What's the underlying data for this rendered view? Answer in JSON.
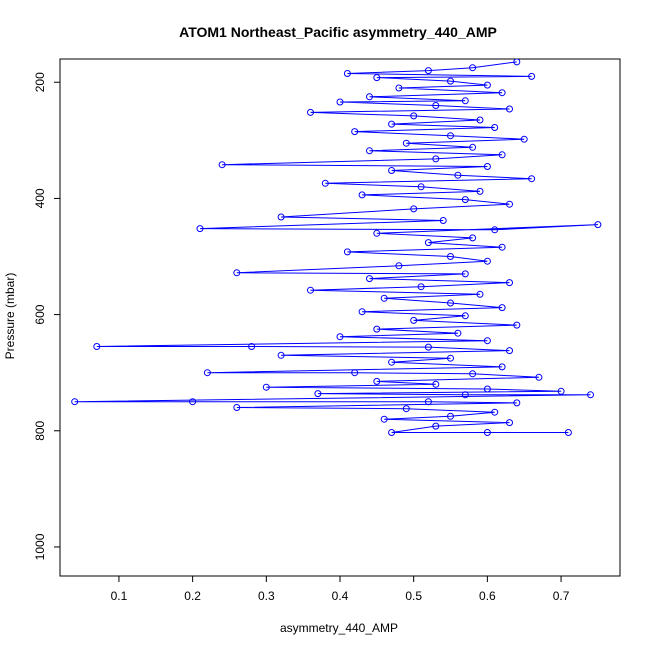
{
  "chart_data": {
    "type": "scatter",
    "title": "ATOM1 Northeast_Pacific asymmetry_440_AMP",
    "xlabel": "asymmetry_440_AMP",
    "ylabel": "Pressure (mbar)",
    "xlim": [
      0.02,
      0.78
    ],
    "ylim": [
      1050,
      160
    ],
    "y_reversed": true,
    "x_ticks": [
      "0.1",
      "0.2",
      "0.3",
      "0.4",
      "0.5",
      "0.6",
      "0.7"
    ],
    "y_ticks": [
      "200",
      "400",
      "600",
      "800",
      "1000"
    ],
    "grid": false,
    "legend": "none",
    "connected_points": true,
    "marker": "open-circle",
    "color": "#0000ff",
    "series": [
      {
        "values": [
          [
            0.64,
            165
          ],
          [
            0.58,
            175
          ],
          [
            0.52,
            180
          ],
          [
            0.41,
            185
          ],
          [
            0.66,
            190
          ],
          [
            0.45,
            192
          ],
          [
            0.55,
            198
          ],
          [
            0.6,
            205
          ],
          [
            0.48,
            210
          ],
          [
            0.62,
            218
          ],
          [
            0.44,
            225
          ],
          [
            0.57,
            232
          ],
          [
            0.4,
            234
          ],
          [
            0.53,
            240
          ],
          [
            0.63,
            246
          ],
          [
            0.36,
            252
          ],
          [
            0.5,
            258
          ],
          [
            0.59,
            265
          ],
          [
            0.47,
            272
          ],
          [
            0.61,
            278
          ],
          [
            0.42,
            285
          ],
          [
            0.55,
            292
          ],
          [
            0.65,
            298
          ],
          [
            0.49,
            305
          ],
          [
            0.58,
            312
          ],
          [
            0.44,
            318
          ],
          [
            0.62,
            325
          ],
          [
            0.53,
            332
          ],
          [
            0.24,
            342
          ],
          [
            0.6,
            345
          ],
          [
            0.47,
            352
          ],
          [
            0.56,
            360
          ],
          [
            0.66,
            366
          ],
          [
            0.38,
            374
          ],
          [
            0.51,
            380
          ],
          [
            0.59,
            388
          ],
          [
            0.43,
            394
          ],
          [
            0.57,
            402
          ],
          [
            0.63,
            410
          ],
          [
            0.5,
            418
          ],
          [
            0.32,
            432
          ],
          [
            0.54,
            438
          ],
          [
            0.21,
            452
          ],
          [
            0.61,
            454
          ],
          [
            0.75,
            445
          ],
          [
            0.45,
            460
          ],
          [
            0.58,
            468
          ],
          [
            0.52,
            476
          ],
          [
            0.62,
            484
          ],
          [
            0.41,
            492
          ],
          [
            0.55,
            500
          ],
          [
            0.6,
            508
          ],
          [
            0.48,
            516
          ],
          [
            0.26,
            528
          ],
          [
            0.57,
            530
          ],
          [
            0.44,
            538
          ],
          [
            0.63,
            545
          ],
          [
            0.51,
            552
          ],
          [
            0.36,
            558
          ],
          [
            0.59,
            565
          ],
          [
            0.46,
            572
          ],
          [
            0.55,
            580
          ],
          [
            0.62,
            588
          ],
          [
            0.43,
            595
          ],
          [
            0.57,
            602
          ],
          [
            0.5,
            610
          ],
          [
            0.64,
            618
          ],
          [
            0.45,
            625
          ],
          [
            0.56,
            632
          ],
          [
            0.4,
            638
          ],
          [
            0.6,
            645
          ],
          [
            0.07,
            655
          ],
          [
            0.28,
            655
          ],
          [
            0.52,
            656
          ],
          [
            0.63,
            662
          ],
          [
            0.32,
            670
          ],
          [
            0.55,
            675
          ],
          [
            0.47,
            682
          ],
          [
            0.62,
            690
          ],
          [
            0.22,
            700
          ],
          [
            0.42,
            700
          ],
          [
            0.58,
            702
          ],
          [
            0.67,
            708
          ],
          [
            0.45,
            715
          ],
          [
            0.53,
            720
          ],
          [
            0.3,
            725
          ],
          [
            0.6,
            728
          ],
          [
            0.7,
            732
          ],
          [
            0.37,
            736
          ],
          [
            0.57,
            738
          ],
          [
            0.74,
            738
          ],
          [
            0.04,
            750
          ],
          [
            0.2,
            750
          ],
          [
            0.52,
            750
          ],
          [
            0.64,
            752
          ],
          [
            0.26,
            760
          ],
          [
            0.49,
            762
          ],
          [
            0.61,
            768
          ],
          [
            0.55,
            775
          ],
          [
            0.46,
            780
          ],
          [
            0.63,
            786
          ],
          [
            0.53,
            792
          ],
          [
            0.47,
            803
          ],
          [
            0.6,
            803
          ],
          [
            0.71,
            803
          ]
        ]
      }
    ]
  }
}
